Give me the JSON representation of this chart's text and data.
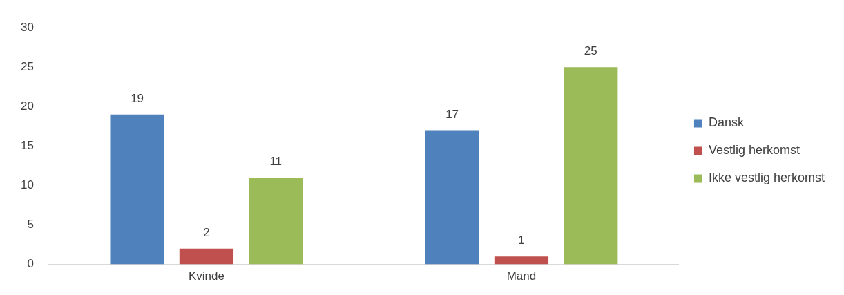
{
  "chart_data": {
    "type": "bar",
    "categories": [
      "Kvinde",
      "Mand"
    ],
    "series": [
      {
        "name": "Dansk",
        "color": "#4f81bd",
        "values": [
          19,
          17
        ]
      },
      {
        "name": "Vestlig herkomst",
        "color": "#c0504d",
        "values": [
          2,
          1
        ]
      },
      {
        "name": "Ikke vestlig herkomst",
        "color": "#9bbb59",
        "values": [
          11,
          25
        ]
      }
    ],
    "ylim": [
      0,
      30
    ],
    "yticks": [
      0,
      5,
      10,
      15,
      20,
      25,
      30
    ],
    "grid": false,
    "legend": "right",
    "data_labels": true
  }
}
